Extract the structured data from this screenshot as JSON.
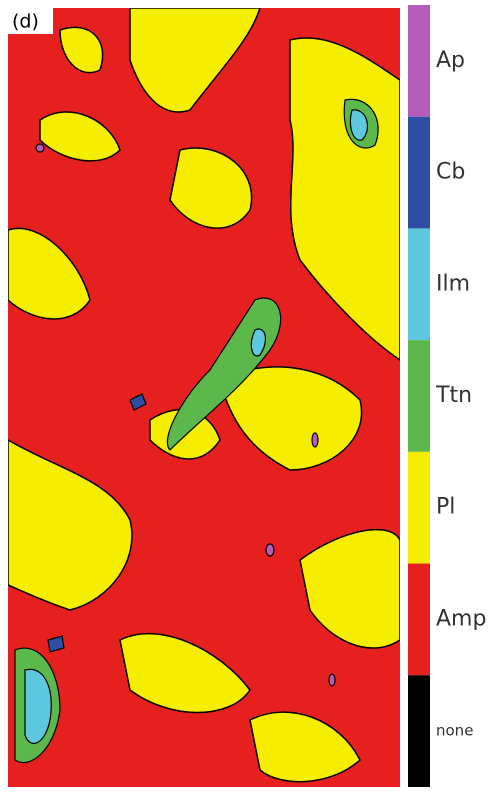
{
  "panel_label": "(d)",
  "legend": {
    "entries": [
      {
        "label": "Ap",
        "color": "#b45cb8"
      },
      {
        "label": "Cb",
        "color": "#2e4ea6"
      },
      {
        "label": "Ilm",
        "color": "#5ec8de"
      },
      {
        "label": "Ttn",
        "color": "#5db84c"
      },
      {
        "label": "Pl",
        "color": "#f5ee00"
      },
      {
        "label": "Amp",
        "color": "#e6201e"
      },
      {
        "label": "none",
        "color": "#000000"
      }
    ]
  }
}
